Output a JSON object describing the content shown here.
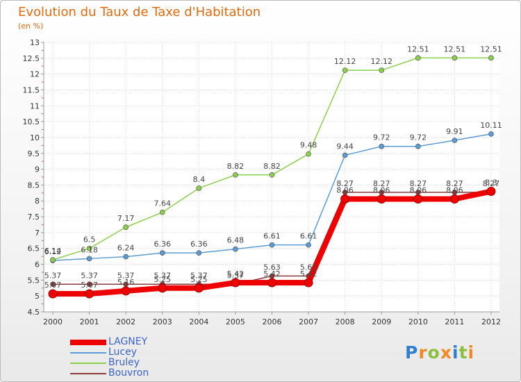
{
  "chart_data": {
    "type": "line",
    "title": "Evolution du Taux de Taxe d'Habitation",
    "subtitle": "(en %)",
    "xlabel": "",
    "ylabel": "",
    "x": [
      "2000",
      "2001",
      "2002",
      "2003",
      "2004",
      "2005",
      "2006",
      "2007",
      "2008",
      "2009",
      "2010",
      "2011",
      "2012"
    ],
    "ylim": [
      4.5,
      13
    ],
    "yticks": [
      "4.5",
      "5",
      "5.5",
      "6",
      "6.5",
      "7",
      "7.5",
      "8",
      "8.5",
      "9",
      "9.5",
      "10",
      "10.5",
      "11",
      "11.5",
      "12",
      "12.5",
      "13"
    ],
    "grid": true,
    "legend_position": "bottom-left",
    "series": [
      {
        "name": "LAGNEY",
        "color": "#ee0000",
        "values": [
          5.07,
          5.07,
          5.16,
          5.25,
          5.25,
          5.42,
          5.42,
          5.42,
          8.06,
          8.06,
          8.06,
          8.06,
          8.3
        ],
        "labels": [
          "5.07",
          "5.07",
          "5.16",
          "5.25",
          "5.25",
          "5.42",
          "5.42",
          "5.42",
          "8.06",
          "8.06",
          "8.06",
          "8.06",
          "8.3"
        ]
      },
      {
        "name": "Lucey",
        "color": "#5b9bd5",
        "values": [
          6.12,
          6.18,
          6.24,
          6.36,
          6.36,
          6.48,
          6.61,
          6.61,
          9.44,
          9.72,
          9.72,
          9.91,
          10.11
        ],
        "labels": [
          "6.12",
          "6.18",
          "6.24",
          "6.36",
          "6.36",
          "6.48",
          "6.61",
          "6.61",
          "9.44",
          "9.72",
          "9.72",
          "9.91",
          "10.11"
        ]
      },
      {
        "name": "Bruley",
        "color": "#8ccf4d",
        "values": [
          6.14,
          6.5,
          7.17,
          7.64,
          8.4,
          8.82,
          8.82,
          9.48,
          12.12,
          12.12,
          12.51,
          12.51,
          12.51
        ],
        "labels": [
          "6.14",
          "6.5",
          "7.17",
          "7.64",
          "8.4",
          "8.82",
          "8.82",
          "9.48",
          "12.12",
          "12.12",
          "12.51",
          "12.51",
          "12.51"
        ]
      },
      {
        "name": "Bouvron",
        "color": "#8b3a3a",
        "values": [
          5.37,
          5.37,
          5.37,
          5.37,
          5.37,
          5.37,
          5.63,
          5.63,
          8.27,
          8.27,
          8.27,
          8.27,
          8.27
        ],
        "labels": [
          "5.37",
          "5.37",
          "5.37",
          "5.37",
          "5.37",
          "5.37",
          "5.63",
          "5.63",
          "8.27",
          "8.27",
          "8.27",
          "8.27",
          "8.27"
        ]
      }
    ]
  },
  "logo": {
    "letters": [
      "P",
      "r",
      "o",
      "x",
      "i",
      "t",
      "i"
    ],
    "colors": [
      "#2f7fd0",
      "#f08a24",
      "#8cbf3f",
      "#f08a24",
      "#2f7fd0",
      "#8cbf3f",
      "#f08a24"
    ]
  }
}
